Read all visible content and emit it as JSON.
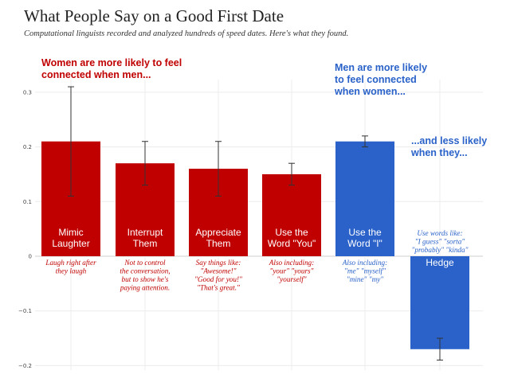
{
  "header": {
    "title": "What People Say on a Good First Date",
    "subtitle": "Computational linguists recorded and analyzed hundreds of speed dates. Here's what they found."
  },
  "annotations": {
    "women": "Women are more likely to feel connected when men...",
    "men": "Men are more likely to feel connected when women...",
    "men_less": "...and less likely when they..."
  },
  "colors": {
    "women": "#c00000",
    "men": "#2a62c9"
  },
  "chart_data": {
    "type": "bar",
    "title": "What People Say on a Good First Date",
    "xlabel": "",
    "ylabel": "",
    "ylim": [
      -0.2,
      0.3
    ],
    "yticks": [
      "0.3",
      "0.2",
      "0.1",
      "0",
      "−0.1",
      "−0.2"
    ],
    "ytick_values": [
      0.3,
      0.2,
      0.1,
      0,
      -0.1,
      -0.2
    ],
    "grid": true,
    "bars": [
      {
        "label_lines": [
          "Mimic",
          "Laughter"
        ],
        "value": 0.21,
        "error_low": 0.11,
        "error_high": 0.31,
        "group": "women",
        "note_lines": [
          "Laugh right after",
          "they laugh"
        ]
      },
      {
        "label_lines": [
          "Interrupt",
          "Them"
        ],
        "value": 0.17,
        "error_low": 0.13,
        "error_high": 0.21,
        "group": "women",
        "note_lines": [
          "Not to control",
          "the conversation,",
          "but to show he's",
          "paying attention."
        ]
      },
      {
        "label_lines": [
          "Appreciate",
          "Them"
        ],
        "value": 0.16,
        "error_low": 0.11,
        "error_high": 0.21,
        "group": "women",
        "note_lines": [
          "Say things like:",
          "\"Awesome!\"",
          "\"Good for you!\"",
          "\"That's great.\""
        ]
      },
      {
        "label_lines": [
          "Use the",
          "Word \"You\""
        ],
        "value": 0.15,
        "error_low": 0.13,
        "error_high": 0.17,
        "group": "women",
        "note_lines": [
          "Also including:",
          "\"your\" \"yours\"",
          "\"yourself\""
        ]
      },
      {
        "label_lines": [
          "Use the",
          "Word \"I\""
        ],
        "value": 0.21,
        "error_low": 0.2,
        "error_high": 0.22,
        "group": "men",
        "note_lines": [
          "Also including:",
          "\"me\" \"myself\"",
          "\"mine\" \"my\""
        ]
      },
      {
        "label_lines": [
          "Hedge"
        ],
        "value": -0.17,
        "error_low": -0.19,
        "error_high": -0.15,
        "group": "men",
        "note_lines": [
          "Use words like:",
          "\"I guess\" \"sorta\"",
          "\"probably\" \"kinda\""
        ]
      }
    ]
  }
}
